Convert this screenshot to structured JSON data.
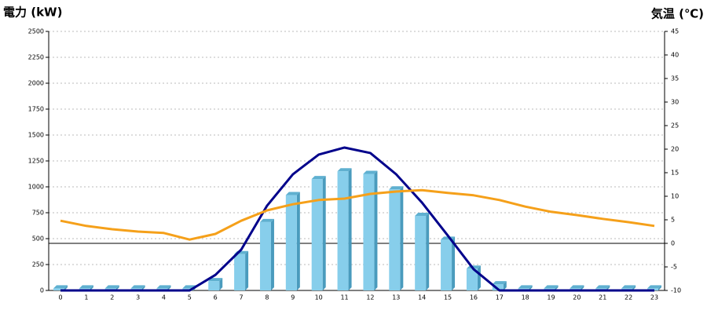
{
  "chart_data": {
    "type": "bar",
    "y_title": "電力 (kW)",
    "y2_title": "気温 (℃)",
    "categories": [
      "0",
      "1",
      "2",
      "3",
      "4",
      "5",
      "6",
      "7",
      "8",
      "9",
      "10",
      "11",
      "12",
      "13",
      "14",
      "15",
      "16",
      "17",
      "18",
      "19",
      "20",
      "21",
      "22",
      "23"
    ],
    "series": [
      {
        "type": "bar",
        "color": "#87ceeb",
        "values": [
          20,
          20,
          20,
          20,
          20,
          20,
          90,
          350,
          660,
          920,
          1075,
          1150,
          1125,
          975,
          720,
          490,
          210,
          60,
          20,
          20,
          20,
          20,
          20,
          20
        ]
      },
      {
        "type": "line",
        "color": "#00008b",
        "values": [
          0,
          0,
          0,
          0,
          0,
          0,
          150,
          394,
          818,
          1121,
          1311,
          1379,
          1326,
          1121,
          848,
          530,
          205,
          0,
          0,
          0,
          0,
          0,
          0,
          0
        ]
      },
      {
        "type": "line",
        "axis": "y2",
        "color": "#f5a01a",
        "values": [
          4.8,
          3.7,
          3,
          2.5,
          2.2,
          0.8,
          2,
          4.8,
          7,
          8.3,
          9.2,
          9.5,
          10.5,
          11,
          11.3,
          10.7,
          10.2,
          9.2,
          7.8,
          6.7,
          6,
          5.2,
          4.5,
          3.7
        ]
      }
    ],
    "ylim": [
      0,
      2500
    ],
    "yticks": [
      0,
      250,
      500,
      750,
      1000,
      1250,
      1500,
      1750,
      2000,
      2250,
      2500
    ],
    "y2lim": [
      -10,
      45
    ],
    "y2ticks": [
      -10,
      -5,
      0,
      5,
      10,
      15,
      20,
      25,
      30,
      35,
      40,
      45
    ],
    "grid": true,
    "y_title_color": "#1a6fb5",
    "y2_title_color": "#f08a24"
  }
}
